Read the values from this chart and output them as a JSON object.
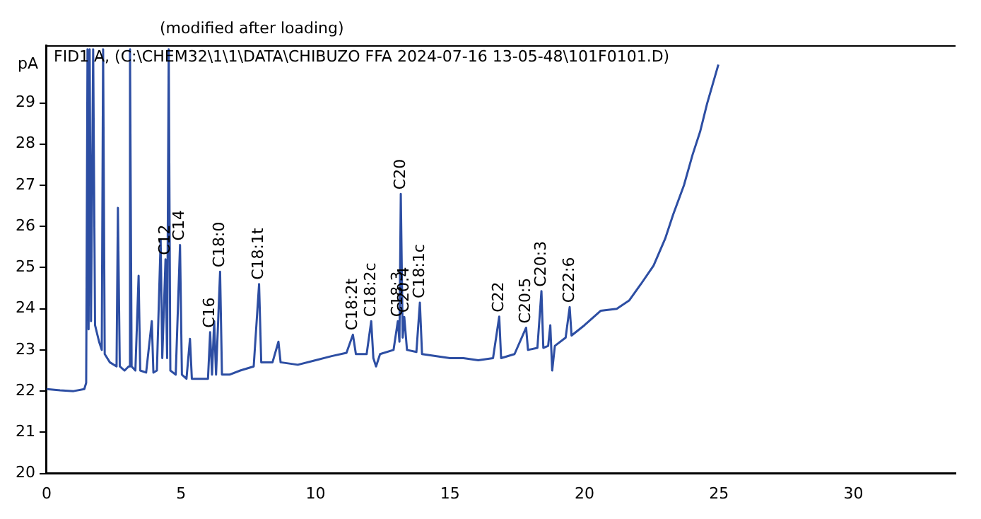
{
  "chart_data": {
    "type": "line",
    "title": "FID1 A, (C:\\CHEM32\\1\\1\\DATA\\CHIBUZO FFA 2024-07-16 13-05-48\\101F0101.D)",
    "subtitle": "(modified after loading)",
    "ylabel": "pA",
    "x": [
      0,
      0.5,
      1.0,
      1.4,
      1.47,
      1.52,
      1.56,
      1.6,
      1.65,
      1.73,
      1.8,
      1.95,
      2.05,
      2.1,
      2.16,
      2.35,
      2.6,
      2.65,
      2.72,
      2.9,
      3.05,
      3.1,
      3.16,
      3.3,
      3.42,
      3.48,
      3.7,
      3.91,
      3.97,
      4.1,
      4.24,
      4.3,
      4.42,
      4.48,
      4.54,
      4.6,
      4.8,
      4.96,
      5.03,
      5.2,
      5.33,
      5.4,
      5.7,
      6.0,
      6.08,
      6.15,
      6.23,
      6.3,
      6.45,
      6.52,
      6.8,
      7.2,
      7.7,
      7.9,
      7.98,
      8.4,
      8.62,
      8.7,
      9.34,
      10.0,
      10.6,
      11.15,
      11.39,
      11.5,
      11.9,
      12.07,
      12.15,
      12.25,
      12.4,
      12.9,
      13.06,
      13.12,
      13.17,
      13.24,
      13.3,
      13.4,
      13.75,
      13.88,
      13.96,
      14.5,
      15.0,
      15.5,
      16.05,
      16.6,
      16.83,
      16.9,
      17.4,
      17.83,
      17.9,
      18.25,
      18.4,
      18.47,
      18.65,
      18.73,
      18.8,
      18.9,
      19.3,
      19.45,
      19.52,
      20.0,
      20.6,
      21.2,
      21.66,
      22.1,
      22.57,
      23.0,
      23.3,
      23.7,
      24.02,
      24.3,
      24.56,
      24.98
    ],
    "series": [
      {
        "color": "#2d4ea3",
        "values": [
          22.05,
          22.02,
          22.0,
          22.05,
          22.2,
          30.3,
          23.5,
          30.3,
          23.7,
          30.3,
          23.6,
          23.2,
          23.0,
          30.3,
          22.9,
          22.7,
          22.6,
          26.45,
          22.6,
          22.5,
          22.6,
          30.3,
          22.6,
          22.5,
          24.8,
          22.5,
          22.45,
          23.7,
          22.45,
          22.5,
          25.67,
          22.8,
          25.2,
          22.8,
          30.3,
          22.5,
          22.4,
          25.55,
          22.4,
          22.3,
          23.27,
          22.3,
          22.3,
          22.3,
          23.43,
          22.4,
          23.7,
          22.4,
          24.9,
          22.4,
          22.4,
          22.5,
          22.6,
          24.6,
          22.7,
          22.7,
          23.2,
          22.7,
          22.64,
          22.75,
          22.85,
          22.93,
          23.37,
          22.9,
          22.9,
          23.7,
          22.8,
          22.6,
          22.9,
          23.0,
          23.7,
          23.2,
          26.79,
          23.3,
          23.8,
          23.0,
          22.95,
          24.15,
          22.9,
          22.85,
          22.8,
          22.8,
          22.75,
          22.8,
          23.81,
          22.8,
          22.9,
          23.54,
          23.0,
          23.05,
          24.43,
          23.05,
          23.1,
          23.6,
          22.5,
          23.1,
          23.3,
          24.04,
          23.35,
          23.6,
          23.95,
          24.0,
          24.2,
          24.6,
          25.05,
          25.7,
          26.29,
          27.0,
          27.74,
          28.3,
          28.98,
          29.93
        ]
      }
    ],
    "xlim": [
      0,
      33.8
    ],
    "xticks": [
      0,
      5,
      10,
      15,
      20,
      25,
      30
    ],
    "ylim": [
      20,
      30.4
    ],
    "yticks": [
      20,
      21,
      22,
      23,
      24,
      25,
      26,
      27,
      28,
      29
    ],
    "grid": false,
    "legend": false,
    "marker": "none",
    "line_style": "solid",
    "annotations": [
      {
        "text": "C12",
        "x": 4.42,
        "y": 25.2
      },
      {
        "text": "C14",
        "x": 4.96,
        "y": 25.55
      },
      {
        "text": "C16",
        "x": 6.08,
        "y": 23.43
      },
      {
        "text": "C18:0",
        "x": 6.45,
        "y": 24.9
      },
      {
        "text": "C18:1t",
        "x": 7.9,
        "y": 24.6
      },
      {
        "text": "C18:2t",
        "x": 11.39,
        "y": 23.37
      },
      {
        "text": "C18:2c",
        "x": 12.07,
        "y": 23.7
      },
      {
        "text": "C18:3",
        "x": 13.06,
        "y": 23.7
      },
      {
        "text": "C20",
        "x": 13.17,
        "y": 26.79
      },
      {
        "text": "C20:4",
        "x": 13.3,
        "y": 23.8
      },
      {
        "text": "C18:1c",
        "x": 13.88,
        "y": 24.15
      },
      {
        "text": "C22",
        "x": 16.83,
        "y": 23.81
      },
      {
        "text": "C20:5",
        "x": 17.83,
        "y": 23.54
      },
      {
        "text": "C20:3",
        "x": 18.4,
        "y": 24.43
      },
      {
        "text": "C22:6",
        "x": 19.45,
        "y": 24.04
      }
    ]
  }
}
